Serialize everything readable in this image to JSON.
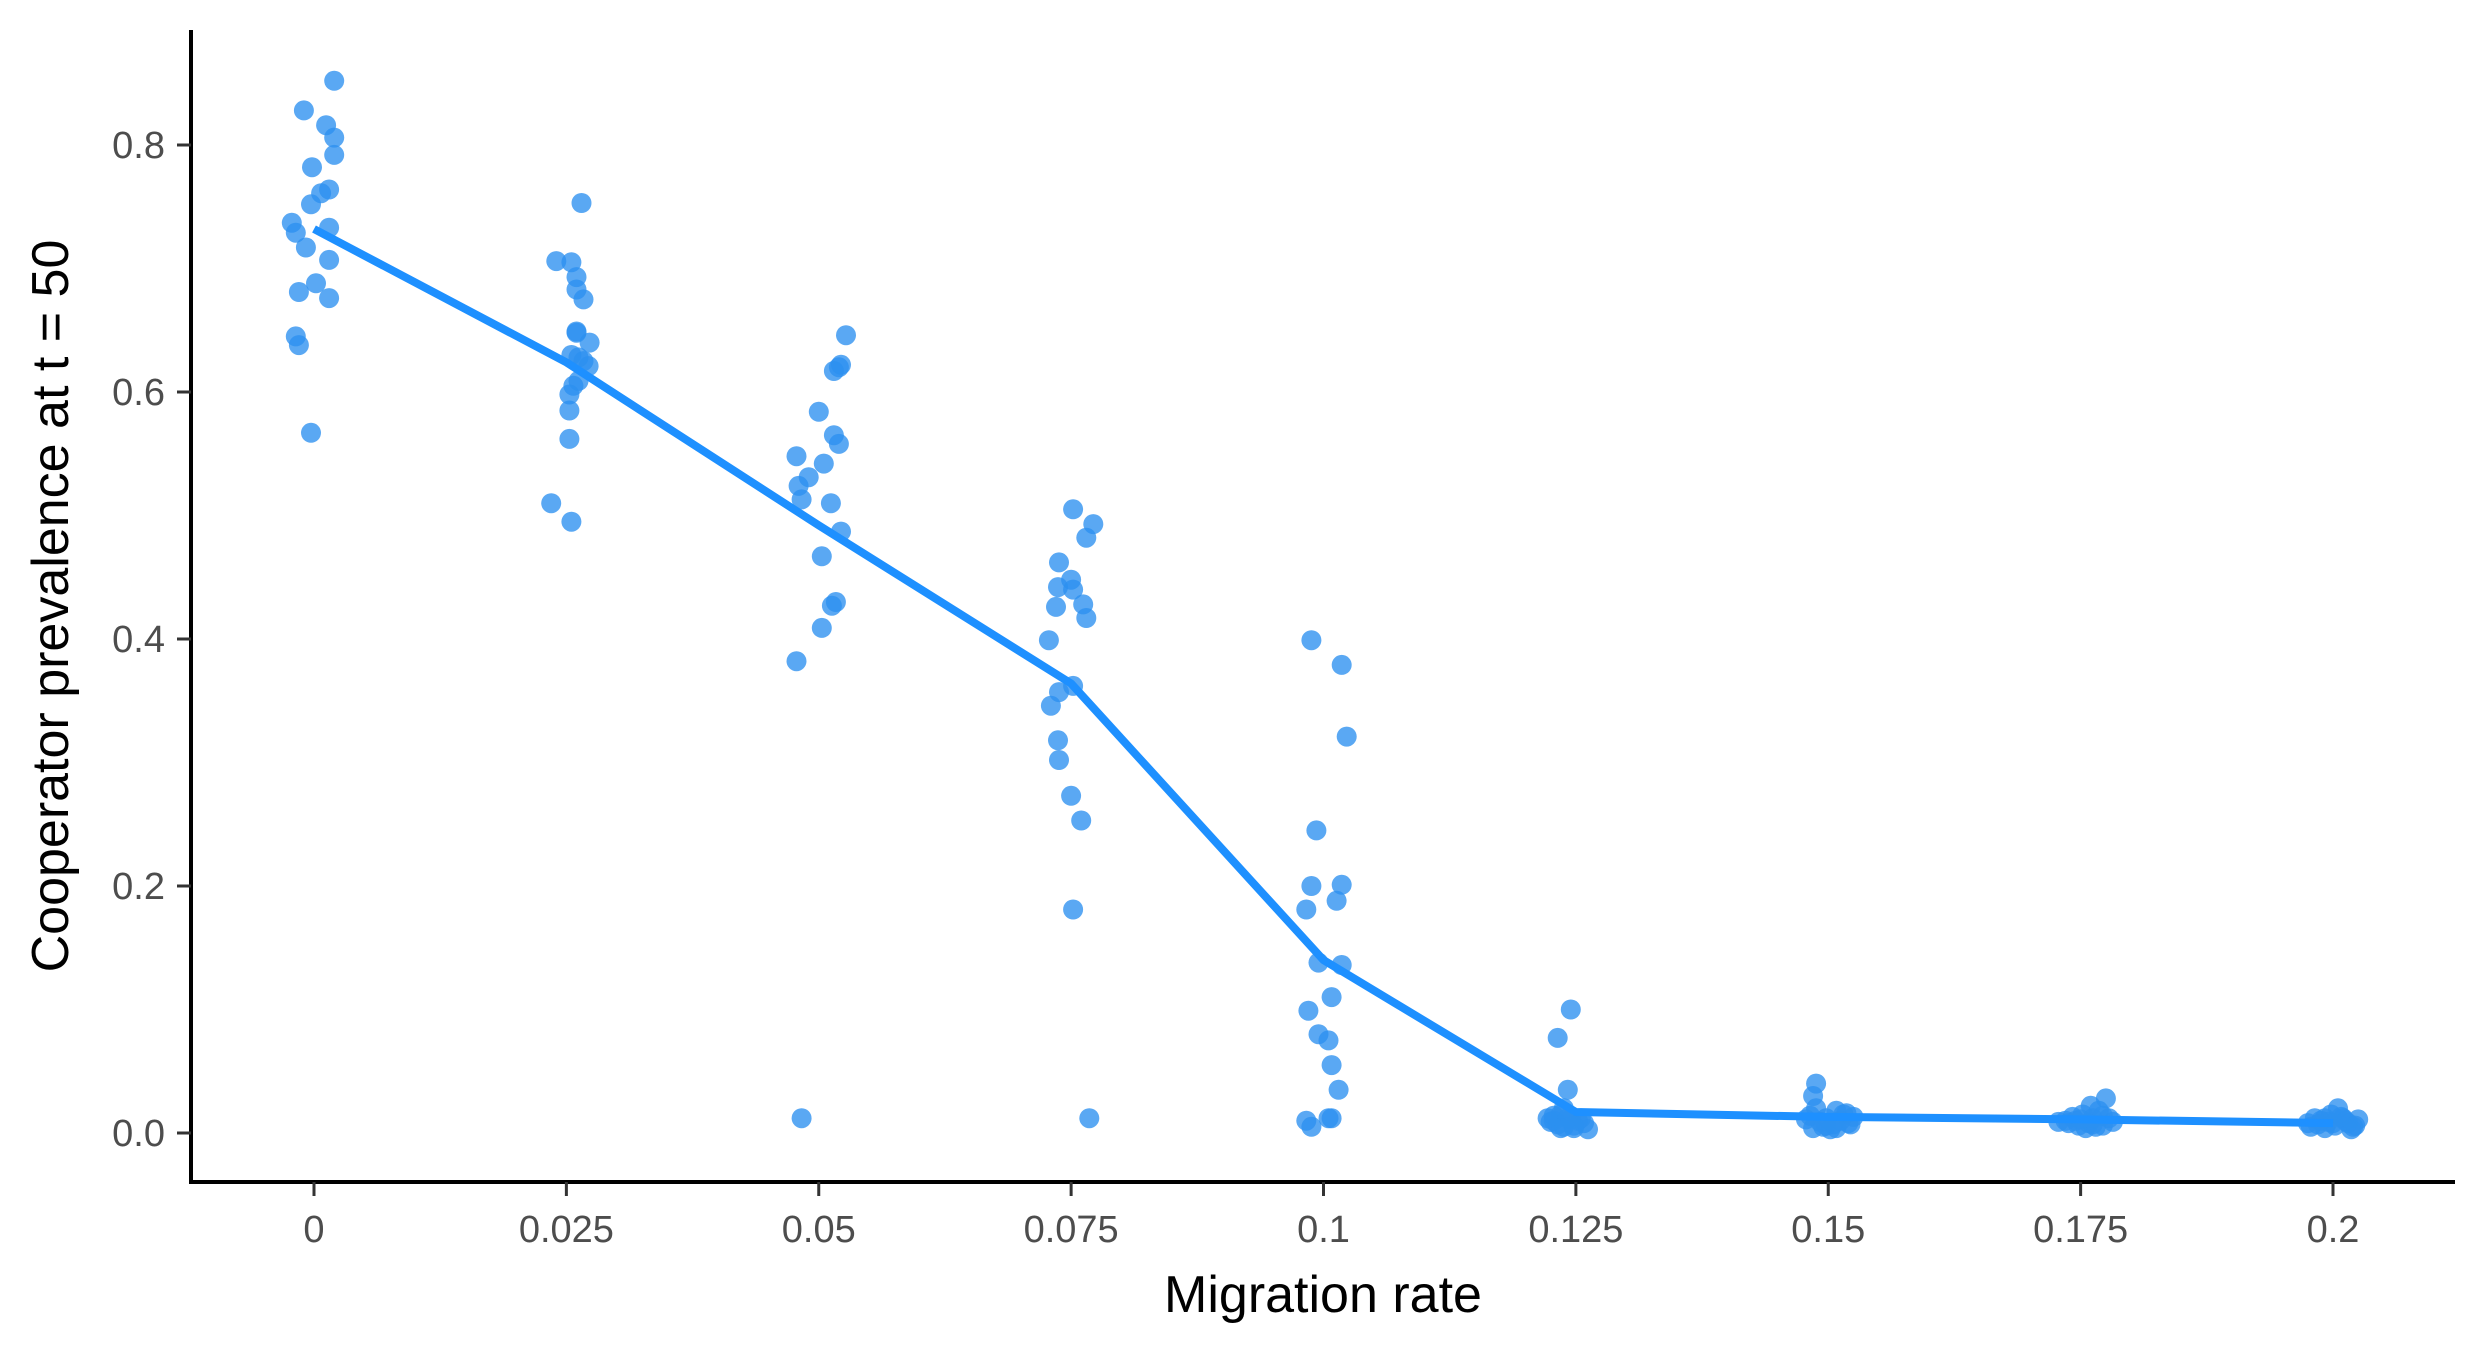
{
  "chart_data": {
    "type": "scatter",
    "xlabel": "Migration rate",
    "ylabel": "Cooperator prevalence at t = 50",
    "xlim": [
      -0.0125,
      0.2125
    ],
    "ylim": [
      -0.04,
      0.89
    ],
    "x_ticks": [
      0,
      0.025,
      0.05,
      0.075,
      0.1,
      0.125,
      0.15,
      0.175,
      0.2
    ],
    "x_tick_labels": [
      "0",
      "0.025",
      "0.05",
      "0.075",
      "0.1",
      "0.125",
      "0.15",
      "0.175",
      "0.2"
    ],
    "y_ticks": [
      0.0,
      0.2,
      0.4,
      0.6,
      0.8
    ],
    "y_tick_labels": [
      "0.0",
      "0.2",
      "0.4",
      "0.6",
      "0.8"
    ],
    "grid": false,
    "legend": "none",
    "point_color": "#2b8ff0",
    "line_color": "#1e90ff",
    "series": [
      {
        "kind": "points",
        "points": [
          [
            0.002,
            0.852
          ],
          [
            -0.001,
            0.828
          ],
          [
            0.0012,
            0.816
          ],
          [
            0.002,
            0.806
          ],
          [
            0.002,
            0.792
          ],
          [
            -0.0002,
            0.782
          ],
          [
            0.0015,
            0.764
          ],
          [
            0.0007,
            0.761
          ],
          [
            -0.0003,
            0.752
          ],
          [
            -0.0022,
            0.737
          ],
          [
            0.0015,
            0.733
          ],
          [
            -0.0018,
            0.729
          ],
          [
            -0.0008,
            0.717
          ],
          [
            0.0015,
            0.707
          ],
          [
            0.0002,
            0.688
          ],
          [
            -0.0015,
            0.681
          ],
          [
            0.0015,
            0.676
          ],
          [
            -0.0018,
            0.645
          ],
          [
            -0.0015,
            0.638
          ],
          [
            -0.0003,
            0.567
          ],
          [
            0.0265,
            0.753
          ],
          [
            0.024,
            0.706
          ],
          [
            0.0255,
            0.705
          ],
          [
            0.026,
            0.693
          ],
          [
            0.026,
            0.683
          ],
          [
            0.0267,
            0.675
          ],
          [
            0.026,
            0.649
          ],
          [
            0.026,
            0.648
          ],
          [
            0.0273,
            0.64
          ],
          [
            0.0255,
            0.63
          ],
          [
            0.0262,
            0.628
          ],
          [
            0.0267,
            0.625
          ],
          [
            0.0272,
            0.621
          ],
          [
            0.0262,
            0.609
          ],
          [
            0.0257,
            0.605
          ],
          [
            0.0253,
            0.598
          ],
          [
            0.0253,
            0.585
          ],
          [
            0.0253,
            0.562
          ],
          [
            0.0235,
            0.51
          ],
          [
            0.0255,
            0.495
          ],
          [
            0.0527,
            0.646
          ],
          [
            0.0522,
            0.622
          ],
          [
            0.052,
            0.62
          ],
          [
            0.0515,
            0.617
          ],
          [
            0.05,
            0.584
          ],
          [
            0.0515,
            0.565
          ],
          [
            0.052,
            0.558
          ],
          [
            0.0478,
            0.548
          ],
          [
            0.0505,
            0.542
          ],
          [
            0.049,
            0.531
          ],
          [
            0.048,
            0.524
          ],
          [
            0.0483,
            0.513
          ],
          [
            0.0512,
            0.51
          ],
          [
            0.0522,
            0.487
          ],
          [
            0.0503,
            0.467
          ],
          [
            0.0517,
            0.43
          ],
          [
            0.0513,
            0.427
          ],
          [
            0.0503,
            0.409
          ],
          [
            0.0478,
            0.382
          ],
          [
            0.0483,
            0.012
          ],
          [
            0.0752,
            0.505
          ],
          [
            0.0772,
            0.493
          ],
          [
            0.0765,
            0.482
          ],
          [
            0.0738,
            0.462
          ],
          [
            0.075,
            0.448
          ],
          [
            0.0737,
            0.442
          ],
          [
            0.0752,
            0.44
          ],
          [
            0.0762,
            0.428
          ],
          [
            0.0735,
            0.426
          ],
          [
            0.0765,
            0.417
          ],
          [
            0.0728,
            0.399
          ],
          [
            0.0752,
            0.362
          ],
          [
            0.0738,
            0.357
          ],
          [
            0.073,
            0.346
          ],
          [
            0.0737,
            0.318
          ],
          [
            0.0738,
            0.302
          ],
          [
            0.075,
            0.273
          ],
          [
            0.076,
            0.253
          ],
          [
            0.0752,
            0.181
          ],
          [
            0.0768,
            0.012
          ],
          [
            0.0988,
            0.399
          ],
          [
            0.1018,
            0.379
          ],
          [
            0.1023,
            0.321
          ],
          [
            0.0993,
            0.245
          ],
          [
            0.0988,
            0.2
          ],
          [
            0.1018,
            0.201
          ],
          [
            0.1013,
            0.188
          ],
          [
            0.0983,
            0.181
          ],
          [
            0.0995,
            0.138
          ],
          [
            0.1018,
            0.136
          ],
          [
            0.1008,
            0.11
          ],
          [
            0.0985,
            0.099
          ],
          [
            0.0995,
            0.08
          ],
          [
            0.1005,
            0.075
          ],
          [
            0.1008,
            0.055
          ],
          [
            0.1015,
            0.035
          ],
          [
            0.0983,
            0.01
          ],
          [
            0.1005,
            0.012
          ],
          [
            0.1008,
            0.012
          ],
          [
            0.0988,
            0.005
          ],
          [
            0.1245,
            0.1
          ],
          [
            0.1232,
            0.077
          ],
          [
            0.1242,
            0.035
          ],
          [
            0.1238,
            0.02
          ],
          [
            0.1235,
            0.015
          ],
          [
            0.1242,
            0.012
          ],
          [
            0.1228,
            0.01
          ],
          [
            0.1232,
            0.007
          ],
          [
            0.1238,
            0.005
          ],
          [
            0.1248,
            0.004
          ],
          [
            0.1225,
            0.009
          ],
          [
            0.1252,
            0.01
          ],
          [
            0.1258,
            0.008
          ],
          [
            0.1262,
            0.003
          ],
          [
            0.1228,
            0.014
          ],
          [
            0.1245,
            0.011
          ],
          [
            0.1235,
            0.004
          ],
          [
            0.1255,
            0.012
          ],
          [
            0.1222,
            0.012
          ],
          [
            0.1248,
            0.006
          ],
          [
            0.1488,
            0.04
          ],
          [
            0.1485,
            0.03
          ],
          [
            0.1488,
            0.02
          ],
          [
            0.1498,
            0.012
          ],
          [
            0.1508,
            0.018
          ],
          [
            0.1515,
            0.015
          ],
          [
            0.152,
            0.008
          ],
          [
            0.1525,
            0.013
          ],
          [
            0.1495,
            0.005
          ],
          [
            0.1505,
            0.007
          ],
          [
            0.1485,
            0.004
          ],
          [
            0.1512,
            0.01
          ],
          [
            0.1478,
            0.011
          ],
          [
            0.1502,
            0.003
          ],
          [
            0.1518,
            0.016
          ],
          [
            0.1492,
            0.009
          ],
          [
            0.1522,
            0.007
          ],
          [
            0.1508,
            0.004
          ],
          [
            0.1482,
            0.014
          ],
          [
            0.1498,
            0.006
          ],
          [
            0.1775,
            0.028
          ],
          [
            0.176,
            0.022
          ],
          [
            0.1768,
            0.018
          ],
          [
            0.1752,
            0.015
          ],
          [
            0.1762,
            0.012
          ],
          [
            0.1745,
            0.01
          ],
          [
            0.1735,
            0.01
          ],
          [
            0.1758,
            0.008
          ],
          [
            0.1772,
            0.006
          ],
          [
            0.1782,
            0.009
          ],
          [
            0.1748,
            0.006
          ],
          [
            0.1738,
            0.008
          ],
          [
            0.1728,
            0.009
          ],
          [
            0.1765,
            0.005
          ],
          [
            0.1778,
            0.012
          ],
          [
            0.1755,
            0.004
          ],
          [
            0.1742,
            0.013
          ],
          [
            0.1772,
            0.014
          ],
          [
            0.1762,
            0.007
          ],
          [
            0.175,
            0.011
          ],
          [
            0.2005,
            0.02
          ],
          [
            0.1998,
            0.015
          ],
          [
            0.201,
            0.012
          ],
          [
            0.1988,
            0.01
          ],
          [
            0.2015,
            0.008
          ],
          [
            0.2022,
            0.006
          ],
          [
            0.2025,
            0.011
          ],
          [
            0.1982,
            0.012
          ],
          [
            0.1978,
            0.005
          ],
          [
            0.1992,
            0.004
          ],
          [
            0.2002,
            0.006
          ],
          [
            0.2018,
            0.003
          ],
          [
            0.1995,
            0.009
          ],
          [
            0.1985,
            0.007
          ],
          [
            0.2008,
            0.013
          ],
          [
            0.1975,
            0.008
          ],
          [
            0.2012,
            0.01
          ],
          [
            0.1992,
            0.012
          ],
          [
            0.202,
            0.005
          ],
          [
            0.2,
            0.008
          ]
        ]
      },
      {
        "kind": "mean-line",
        "x": [
          0,
          0.025,
          0.05,
          0.075,
          0.1,
          0.125,
          0.15,
          0.175,
          0.2
        ],
        "y": [
          0.732,
          0.624,
          0.492,
          0.364,
          0.14,
          0.017,
          0.013,
          0.011,
          0.008
        ]
      }
    ]
  }
}
